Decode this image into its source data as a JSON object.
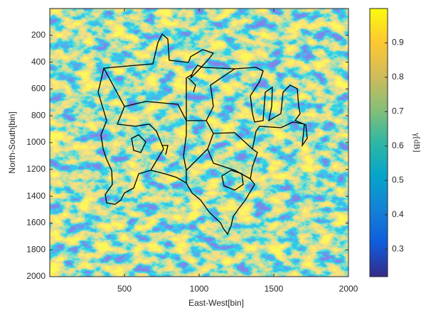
{
  "chart_data": {
    "type": "heatmap",
    "xlabel": "East-West[bin]",
    "ylabel": "North-South[bin]",
    "xlim": [
      0,
      2000
    ],
    "xticks": [
      500,
      1000,
      1500,
      2000
    ],
    "ylim": [
      0,
      2000
    ],
    "yticks": [
      200,
      400,
      600,
      800,
      1000,
      1200,
      1400,
      1600,
      1800,
      2000
    ],
    "y_direction": "reverse",
    "colormap": "parula",
    "colorbar": {
      "label": "γ[dB]",
      "lim": [
        0.22,
        1.0
      ],
      "ticks": [
        0.3,
        0.4,
        0.5,
        0.6,
        0.7,
        0.8,
        0.9
      ]
    }
  }
}
